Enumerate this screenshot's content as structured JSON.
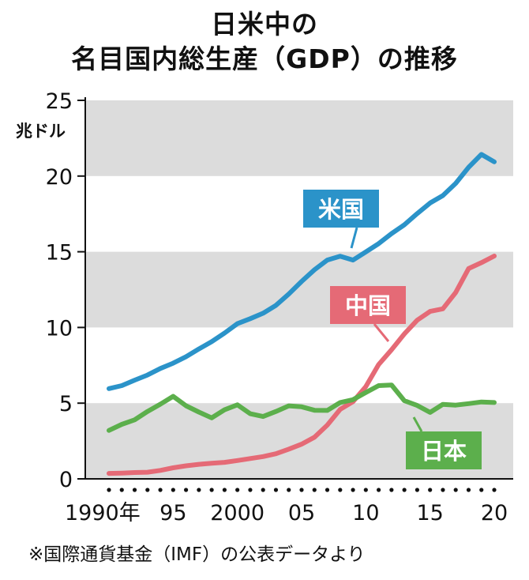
{
  "chart_data": {
    "type": "line",
    "title_line1": "日米中の",
    "title_line2": "名目国内総生産（GDP）の推移",
    "ylabel": "兆ドル",
    "ylim": [
      0,
      25
    ],
    "yticks": [
      "0",
      "5",
      "10",
      "15",
      "20",
      "25"
    ],
    "xlim": [
      1990,
      2020
    ],
    "xticks": [
      {
        "value": 1990,
        "label": "1990年"
      },
      {
        "value": 1995,
        "label": "95"
      },
      {
        "value": 2000,
        "label": "2000"
      },
      {
        "value": 2005,
        "label": "05"
      },
      {
        "value": 2010,
        "label": "10"
      },
      {
        "value": 2015,
        "label": "15"
      },
      {
        "value": 2020,
        "label": "20"
      }
    ],
    "x": [
      1990,
      1991,
      1992,
      1993,
      1994,
      1995,
      1996,
      1997,
      1998,
      1999,
      2000,
      2001,
      2002,
      2003,
      2004,
      2005,
      2006,
      2007,
      2008,
      2009,
      2010,
      2011,
      2012,
      2013,
      2014,
      2015,
      2016,
      2017,
      2018,
      2019,
      2020
    ],
    "series": [
      {
        "name": "米国",
        "color": "#2b93c9",
        "values": [
          5.96,
          6.16,
          6.52,
          6.86,
          7.29,
          7.64,
          8.07,
          8.58,
          9.06,
          9.63,
          10.25,
          10.58,
          10.94,
          11.46,
          12.21,
          13.04,
          13.81,
          14.45,
          14.71,
          14.45,
          14.99,
          15.54,
          16.2,
          16.78,
          17.52,
          18.22,
          18.71,
          19.52,
          20.58,
          21.43,
          20.94
        ]
      },
      {
        "name": "中国",
        "color": "#e56a76",
        "values": [
          0.36,
          0.38,
          0.42,
          0.44,
          0.56,
          0.73,
          0.86,
          0.96,
          1.03,
          1.09,
          1.21,
          1.34,
          1.47,
          1.66,
          1.96,
          2.29,
          2.75,
          3.55,
          4.59,
          5.1,
          6.09,
          7.55,
          8.53,
          9.57,
          10.48,
          11.06,
          11.23,
          12.31,
          13.89,
          14.28,
          14.72
        ]
      },
      {
        "name": "日本",
        "color": "#5caf4c",
        "values": [
          3.2,
          3.6,
          3.9,
          4.45,
          4.93,
          5.45,
          4.83,
          4.41,
          4.03,
          4.56,
          4.89,
          4.3,
          4.12,
          4.45,
          4.82,
          4.76,
          4.53,
          4.52,
          5.04,
          5.23,
          5.7,
          6.16,
          6.2,
          5.16,
          4.85,
          4.39,
          4.92,
          4.87,
          4.97,
          5.08,
          5.04
        ]
      }
    ]
  },
  "source_note": "※国際通貨基金（IMF）の公表データより"
}
